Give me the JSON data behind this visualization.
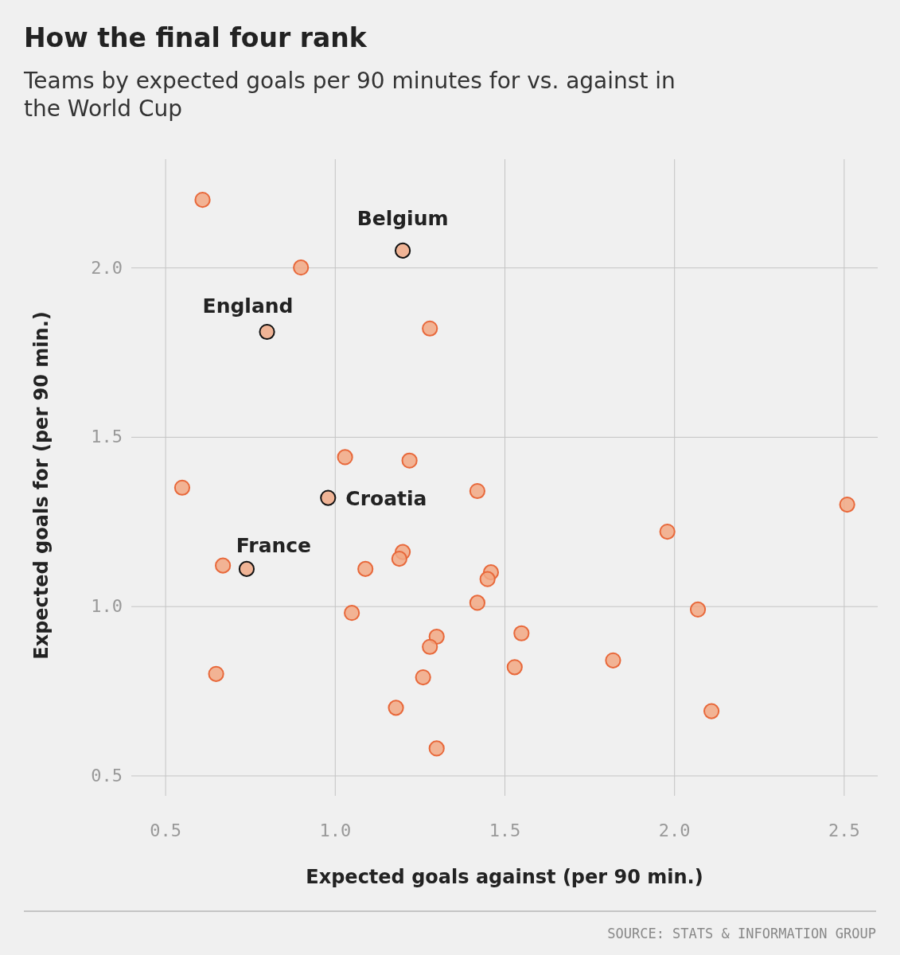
{
  "chart_data": {
    "type": "scatter",
    "title": "How the final four rank",
    "subtitle": "Teams by expected goals per 90 minutes for vs. against in the World Cup",
    "xlabel": "Expected goals against (per 90 min.)",
    "ylabel": "Expected goals for (per 90 min.)",
    "series": [
      {
        "color": "#f2a884",
        "x": [
          0.61,
          0.9,
          1.28,
          1.03,
          1.22,
          0.55,
          1.42,
          2.51,
          1.98,
          0.67,
          1.09,
          1.2,
          1.19,
          1.46,
          1.45,
          1.42,
          2.07,
          1.05,
          1.3,
          1.55,
          1.28,
          1.82,
          1.53,
          1.26,
          0.65,
          1.18,
          2.11,
          1.3
        ],
        "values": [
          2.2,
          2.0,
          1.82,
          1.44,
          1.43,
          1.35,
          1.34,
          1.3,
          1.22,
          1.12,
          1.11,
          1.16,
          1.14,
          1.1,
          1.08,
          1.01,
          0.99,
          0.98,
          0.91,
          0.92,
          0.88,
          0.84,
          0.82,
          0.79,
          0.8,
          0.7,
          0.69,
          0.58
        ]
      },
      {
        "color": "#f0b496",
        "x": [
          1.2,
          0.8,
          0.98,
          0.74
        ],
        "values": [
          2.05,
          1.81,
          1.32,
          1.11
        ]
      }
    ],
    "annotations": [
      {
        "text": "Belgium",
        "x": 1.2,
        "y": 2.05
      },
      {
        "text": "England",
        "x": 0.8,
        "y": 1.81
      },
      {
        "text": "Croatia",
        "x": 0.98,
        "y": 1.32
      },
      {
        "text": "France",
        "x": 0.74,
        "y": 1.11
      },
      "SOURCE: STATS & INFORMATION GROUP"
    ],
    "xlim": [
      0.4,
      2.6
    ],
    "ylim": [
      0.44,
      2.32
    ],
    "xticks": [
      0.5,
      {
        "value": 1,
        "label": "1.0"
      },
      1.5,
      {
        "value": 2,
        "label": "2.0"
      },
      2.5
    ],
    "yticks": [
      0.5,
      {
        "value": 1,
        "label": "1.0"
      },
      1.5,
      {
        "value": 2,
        "label": "2.0"
      }
    ],
    "grid": true,
    "marker": "circle"
  }
}
